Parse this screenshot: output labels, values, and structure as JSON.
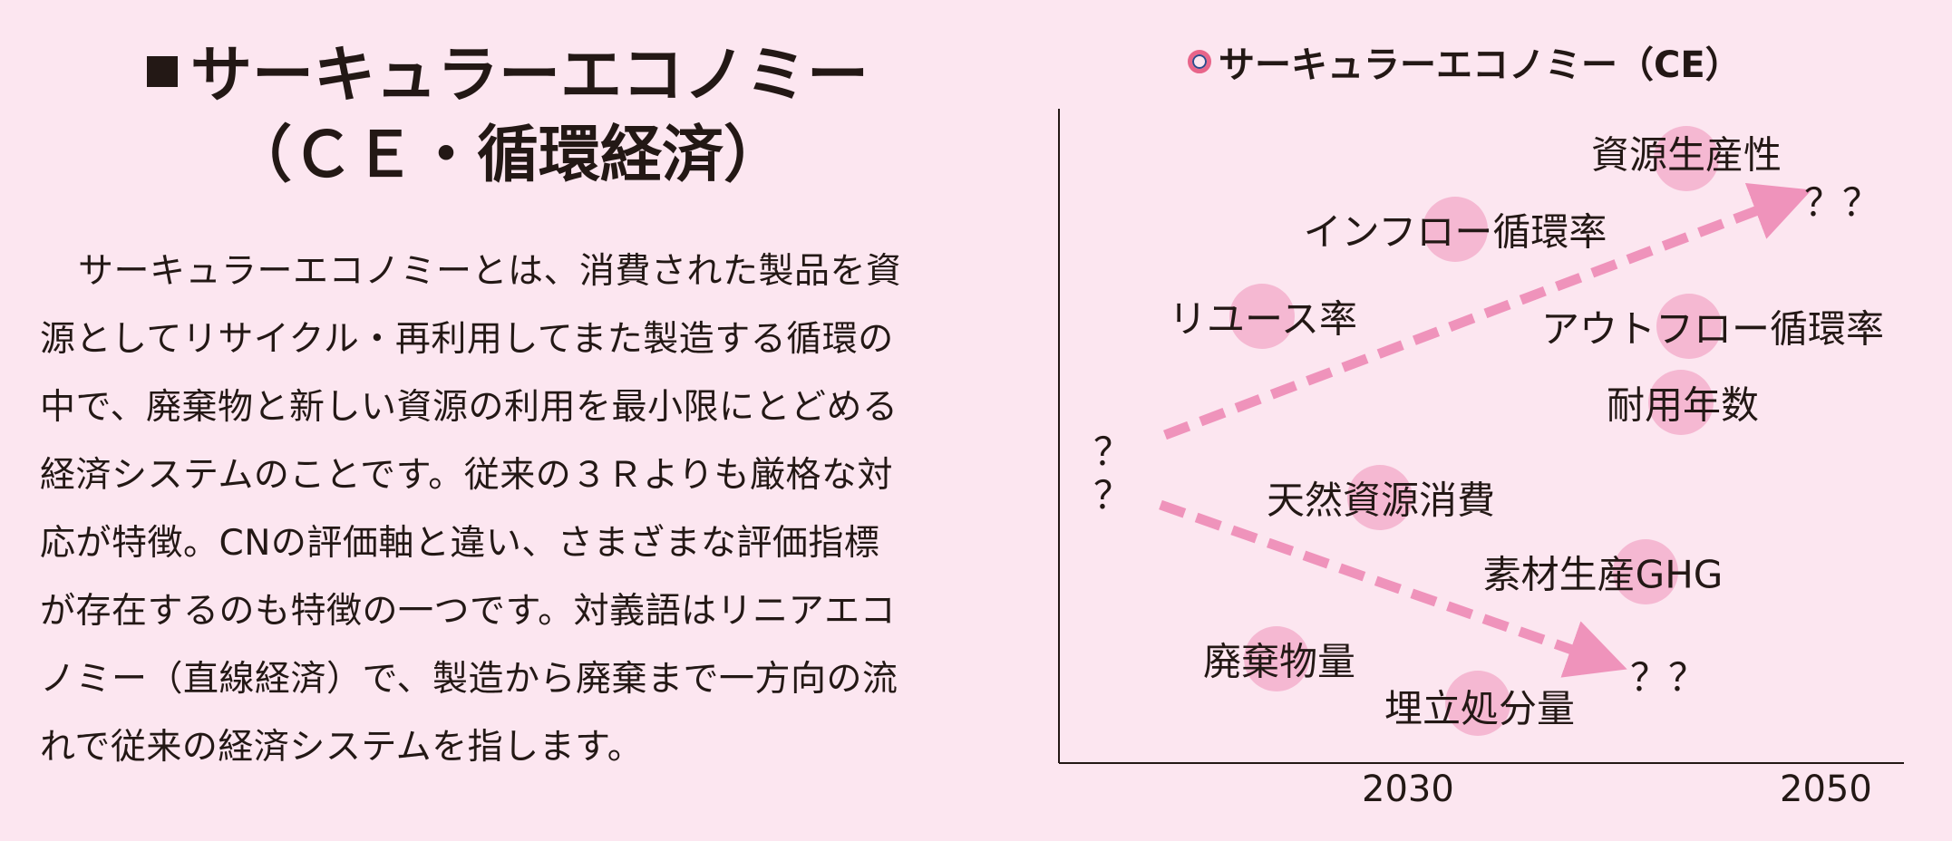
{
  "heading": {
    "line1": "サーキュラーエコノミー",
    "line2": "（ＣＥ・循環経済）"
  },
  "body_text": "サーキュラーエコノミーとは、消費された製品を資源としてリサイクル・再利用してまた製造する循環の中で、廃棄物と新しい資源の利用を最小限にとどめる経済システムのことです。従来の３Ｒよりも厳格な対応が特徴。CNの評価軸と違い、さまざまな評価指標が存在するのも特徴の一つです。対義語はリニアエコノミー（直線経済）で、製造から廃棄まで一方向の流れで従来の経済システムを指します。",
  "diagram": {
    "legend": "サーキュラーエコノミー（CE）",
    "start_marks": [
      "？",
      "？"
    ],
    "up_end_mark": "？？",
    "down_end_mark": "？？",
    "x_ticks": [
      "2030",
      "2050"
    ],
    "increasing_items": [
      "資源生産性",
      "インフロー循環率",
      "リユース率",
      "アウトフロー循環率",
      "耐用年数"
    ],
    "decreasing_items": [
      "天然資源消費",
      "素材生産GHG",
      "廃棄物量",
      "埋立処分量"
    ],
    "colors": {
      "background": "#fce6f0",
      "arrow": "#ef93bb",
      "highlight": "#f5b8d2",
      "text": "#231815"
    }
  }
}
